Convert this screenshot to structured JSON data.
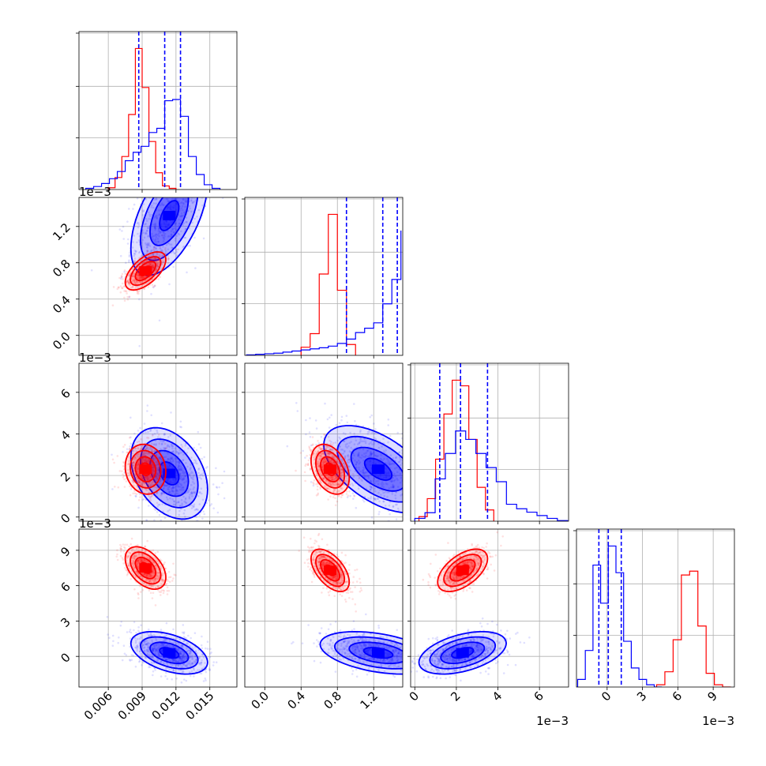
{
  "chart_data": {
    "type": "corner",
    "colors": {
      "blue": "#0000ff",
      "red": "#ff0000",
      "grid": "#b0b0b0"
    },
    "series": [
      {
        "name": "blue",
        "color": "#0000ff"
      },
      {
        "name": "red",
        "color": "#ff0000"
      }
    ],
    "params": [
      {
        "id": "p0",
        "range": [
          0.0034,
          0.0174
        ],
        "ticks": [
          0.006,
          0.009,
          0.012,
          0.015
        ],
        "tick_labels": [
          "0.006",
          "0.009",
          "0.012",
          "0.015"
        ],
        "offset": ""
      },
      {
        "id": "p1",
        "range": [
          -0.00022,
          0.00152
        ],
        "ticks": [
          0.0,
          0.0004,
          0.0008,
          0.0012
        ],
        "tick_labels": [
          "0.0",
          "0.4",
          "0.8",
          "1.2"
        ],
        "offset": "1e−3"
      },
      {
        "id": "p2",
        "range": [
          -0.0002,
          0.0074
        ],
        "ticks": [
          0.0,
          0.002,
          0.004,
          0.006
        ],
        "tick_labels": [
          "0",
          "2",
          "4",
          "6"
        ],
        "offset": "1e−3"
      },
      {
        "id": "p3",
        "range": [
          -0.0026,
          0.0108
        ],
        "ticks": [
          0.0,
          0.003,
          0.006,
          0.009
        ],
        "tick_labels": [
          "0",
          "3",
          "6",
          "9"
        ],
        "offset": "1e−3"
      }
    ],
    "histograms": [
      {
        "param": "p0",
        "quantiles_blue": [
          0.0087,
          0.011,
          0.0124
        ],
        "blue": {
          "bins": [
            0.004,
            0.0047,
            0.0054,
            0.0061,
            0.0068,
            0.0075,
            0.0082,
            0.0089,
            0.0096,
            0.0103,
            0.011,
            0.0117,
            0.0124,
            0.0131,
            0.0138,
            0.0145,
            0.0152,
            0.0159
          ],
          "counts": [
            2,
            5,
            10,
            18,
            30,
            48,
            62,
            72,
            95,
            102,
            148,
            150,
            122,
            55,
            25,
            8,
            2
          ]
        },
        "red": {
          "bins": [
            0.006,
            0.0066,
            0.0072,
            0.0078,
            0.0084,
            0.009,
            0.0096,
            0.0102,
            0.0108,
            0.0114,
            0.012
          ],
          "counts": [
            3,
            20,
            55,
            125,
            235,
            170,
            80,
            28,
            6,
            2
          ]
        }
      },
      {
        "param": "p1",
        "quantiles_blue": [
          0.0009,
          0.0013,
          0.00146
        ],
        "blue": {
          "bins": [
            -0.0002,
            -0.0001,
            0.0,
            0.0001,
            0.0002,
            0.0003,
            0.0004,
            0.0005,
            0.0006,
            0.0007,
            0.0008,
            0.0009,
            0.001,
            0.0011,
            0.0012,
            0.0013,
            0.0014,
            0.0015
          ],
          "counts": [
            1,
            2,
            3,
            4,
            6,
            8,
            10,
            12,
            14,
            17,
            22,
            30,
            42,
            50,
            60,
            95,
            140,
            230
          ]
        },
        "red": {
          "bins": [
            0.0004,
            0.0005,
            0.0006,
            0.0007,
            0.0008,
            0.0009,
            0.001
          ],
          "counts": [
            15,
            40,
            150,
            260,
            120,
            20
          ]
        }
      },
      {
        "param": "p2",
        "quantiles_blue": [
          0.0012,
          0.0022,
          0.0035
        ],
        "blue": {
          "bins": [
            0.0,
            0.00049,
            0.00098,
            0.00147,
            0.00196,
            0.00245,
            0.00294,
            0.00343,
            0.00392,
            0.00441,
            0.0049,
            0.00539,
            0.00588,
            0.00637,
            0.00686,
            0.00735
          ],
          "counts": [
            5,
            15,
            75,
            120,
            160,
            145,
            120,
            95,
            70,
            30,
            22,
            16,
            10,
            5,
            1
          ]
        },
        "red": {
          "bins": [
            0.0002,
            0.0006,
            0.001,
            0.0014,
            0.0018,
            0.0022,
            0.0026,
            0.003,
            0.0034,
            0.0038
          ],
          "counts": [
            8,
            40,
            110,
            190,
            250,
            240,
            145,
            60,
            20
          ]
        }
      },
      {
        "param": "p3",
        "quantiles_blue": [
          -0.0007,
          0.0001,
          0.0012
        ],
        "blue": {
          "bins": [
            -0.0025,
            -0.00185,
            -0.0012,
            -0.00055,
            0.0001,
            0.00075,
            0.0014,
            0.00205,
            0.0027,
            0.00335,
            0.004,
            0.00465
          ],
          "counts": [
            10,
            48,
            160,
            110,
            185,
            150,
            60,
            25,
            10,
            3,
            0
          ]
        },
        "red": {
          "bins": [
            0.0042,
            0.0049,
            0.0056,
            0.0063,
            0.007,
            0.0077,
            0.0084,
            0.0091,
            0.0098,
            0.0105
          ],
          "counts": [
            3,
            20,
            62,
            147,
            152,
            80,
            18,
            3,
            0
          ]
        }
      }
    ],
    "pairs": [
      {
        "x": "p0",
        "y": "p1",
        "blue_mean": [
          0.0114,
          0.00132
        ],
        "blue_sd": [
          0.0017,
          0.00033
        ],
        "blue_rho": 0.55,
        "red_mean": [
          0.0093,
          0.00071
        ],
        "red_sd": [
          0.0009,
          0.000105
        ],
        "red_rho": 0.6
      },
      {
        "x": "p0",
        "y": "p2",
        "blue_mean": [
          0.0114,
          0.0021
        ],
        "blue_sd": [
          0.0017,
          0.0011
        ],
        "blue_rho": -0.35,
        "red_mean": [
          0.0093,
          0.0023
        ],
        "red_sd": [
          0.0009,
          0.0006
        ],
        "red_rho": -0.1
      },
      {
        "x": "p1",
        "y": "p2",
        "blue_mean": [
          0.00125,
          0.0023
        ],
        "blue_sd": [
          0.0003,
          0.00105
        ],
        "blue_rho": -0.55,
        "red_mean": [
          0.00072,
          0.0023
        ],
        "red_sd": [
          0.000105,
          0.0006
        ],
        "red_rho": -0.35
      },
      {
        "x": "p0",
        "y": "p3",
        "blue_mean": [
          0.0114,
          0.0003
        ],
        "blue_sd": [
          0.0017,
          0.0009
        ],
        "blue_rho": -0.45,
        "red_mean": [
          0.0093,
          0.0075
        ],
        "red_sd": [
          0.0009,
          0.0009
        ],
        "red_rho": -0.45
      },
      {
        "x": "p1",
        "y": "p3",
        "blue_mean": [
          0.00125,
          0.0003
        ],
        "blue_sd": [
          0.00032,
          0.0009
        ],
        "blue_rho": -0.4,
        "red_mean": [
          0.00072,
          0.0073
        ],
        "red_sd": [
          0.000105,
          0.0009
        ],
        "red_rho": -0.55
      },
      {
        "x": "p2",
        "y": "p3",
        "blue_mean": [
          0.0023,
          0.0003
        ],
        "blue_sd": [
          0.00105,
          0.0009
        ],
        "blue_rho": 0.45,
        "red_mean": [
          0.0023,
          0.0073
        ],
        "red_sd": [
          0.0006,
          0.0009
        ],
        "red_rho": 0.55
      }
    ],
    "contour_levels_sigma": [
      0.5,
      1.0,
      1.5,
      2.0
    ],
    "grid": true,
    "title": "",
    "xlabel": "",
    "ylabel": ""
  }
}
